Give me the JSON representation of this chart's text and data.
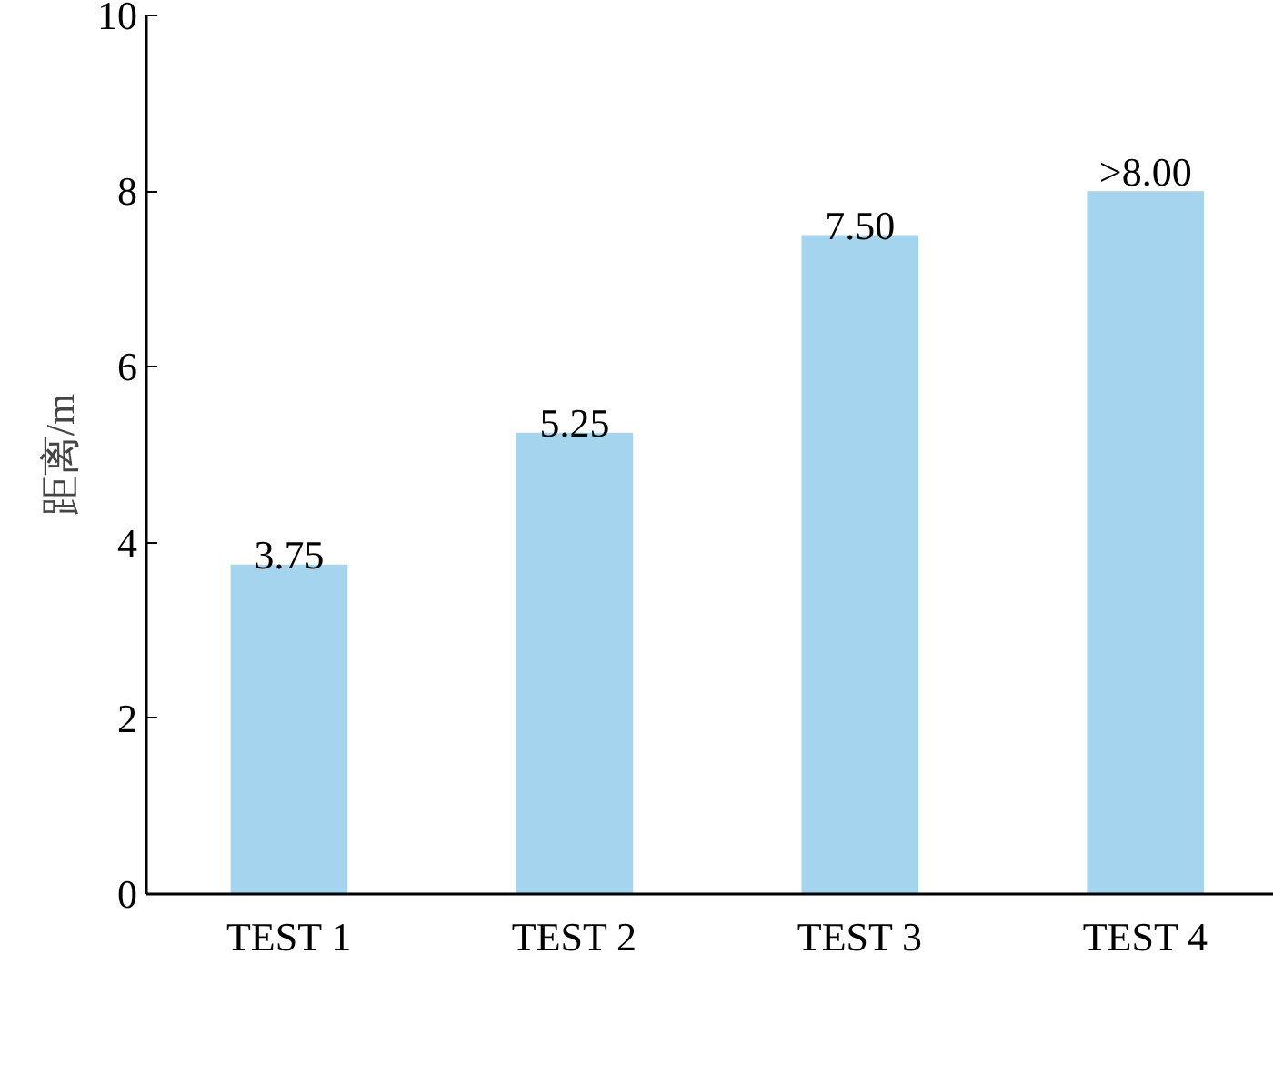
{
  "chart_data": {
    "type": "bar",
    "ylabel": "距离/m",
    "categories": [
      "TEST 1",
      "TEST 2",
      "TEST 3",
      "TEST 4"
    ],
    "values": [
      3.75,
      5.25,
      7.5,
      8.0
    ],
    "value_labels": [
      "3.75",
      "5.25",
      "7.50",
      ">8.00"
    ],
    "color": "#a5d5ee",
    "ylim": [
      0,
      10
    ],
    "yticks": [
      0,
      2,
      4,
      6,
      8,
      10
    ],
    "grid": false
  }
}
